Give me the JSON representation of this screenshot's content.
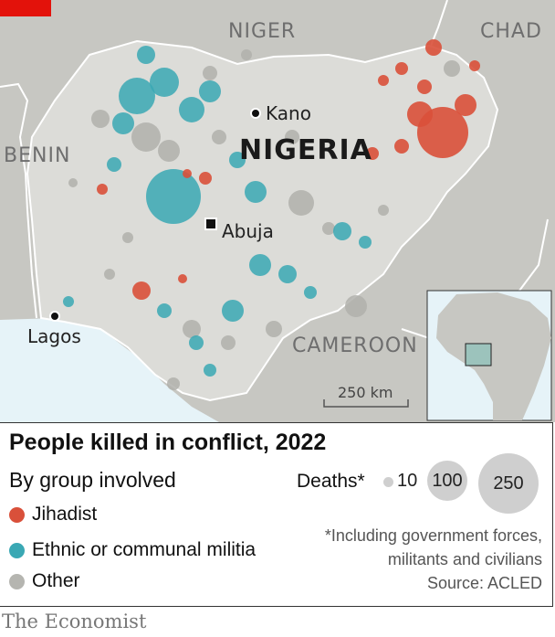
{
  "map": {
    "countries": {
      "niger": "NIGER",
      "chad": "CHAD",
      "benin": "BENIN",
      "cameroon": "CAMEROON",
      "nigeria": "NIGERIA"
    },
    "cities": {
      "kano": "Kano",
      "abuja": "Abuja",
      "lagos": "Lagos"
    },
    "scale_bar": "250 km",
    "colors": {
      "jihadist": "#d9503a",
      "ethnic": "#3aa8b4",
      "other": "#b5b5b0",
      "land_nigeria": "#dcdcd8",
      "land_other": "#c7c7c2",
      "sea": "#e6f3f8"
    }
  },
  "legend": {
    "title": "People killed in conflict, 2022",
    "subtitle": "By group involved",
    "categories": [
      {
        "label": "Jihadist",
        "color": "#d9503a"
      },
      {
        "label": "Ethnic or communal militia",
        "color": "#3aa8b4"
      },
      {
        "label": "Other",
        "color": "#b5b5b0"
      }
    ],
    "deaths_label": "Deaths*",
    "sizes": [
      "10",
      "100",
      "250"
    ],
    "note_line1": "*Including government forces,",
    "note_line2": "militants and civilians",
    "source": "Source: ACLED"
  },
  "brand": "The Economist"
}
